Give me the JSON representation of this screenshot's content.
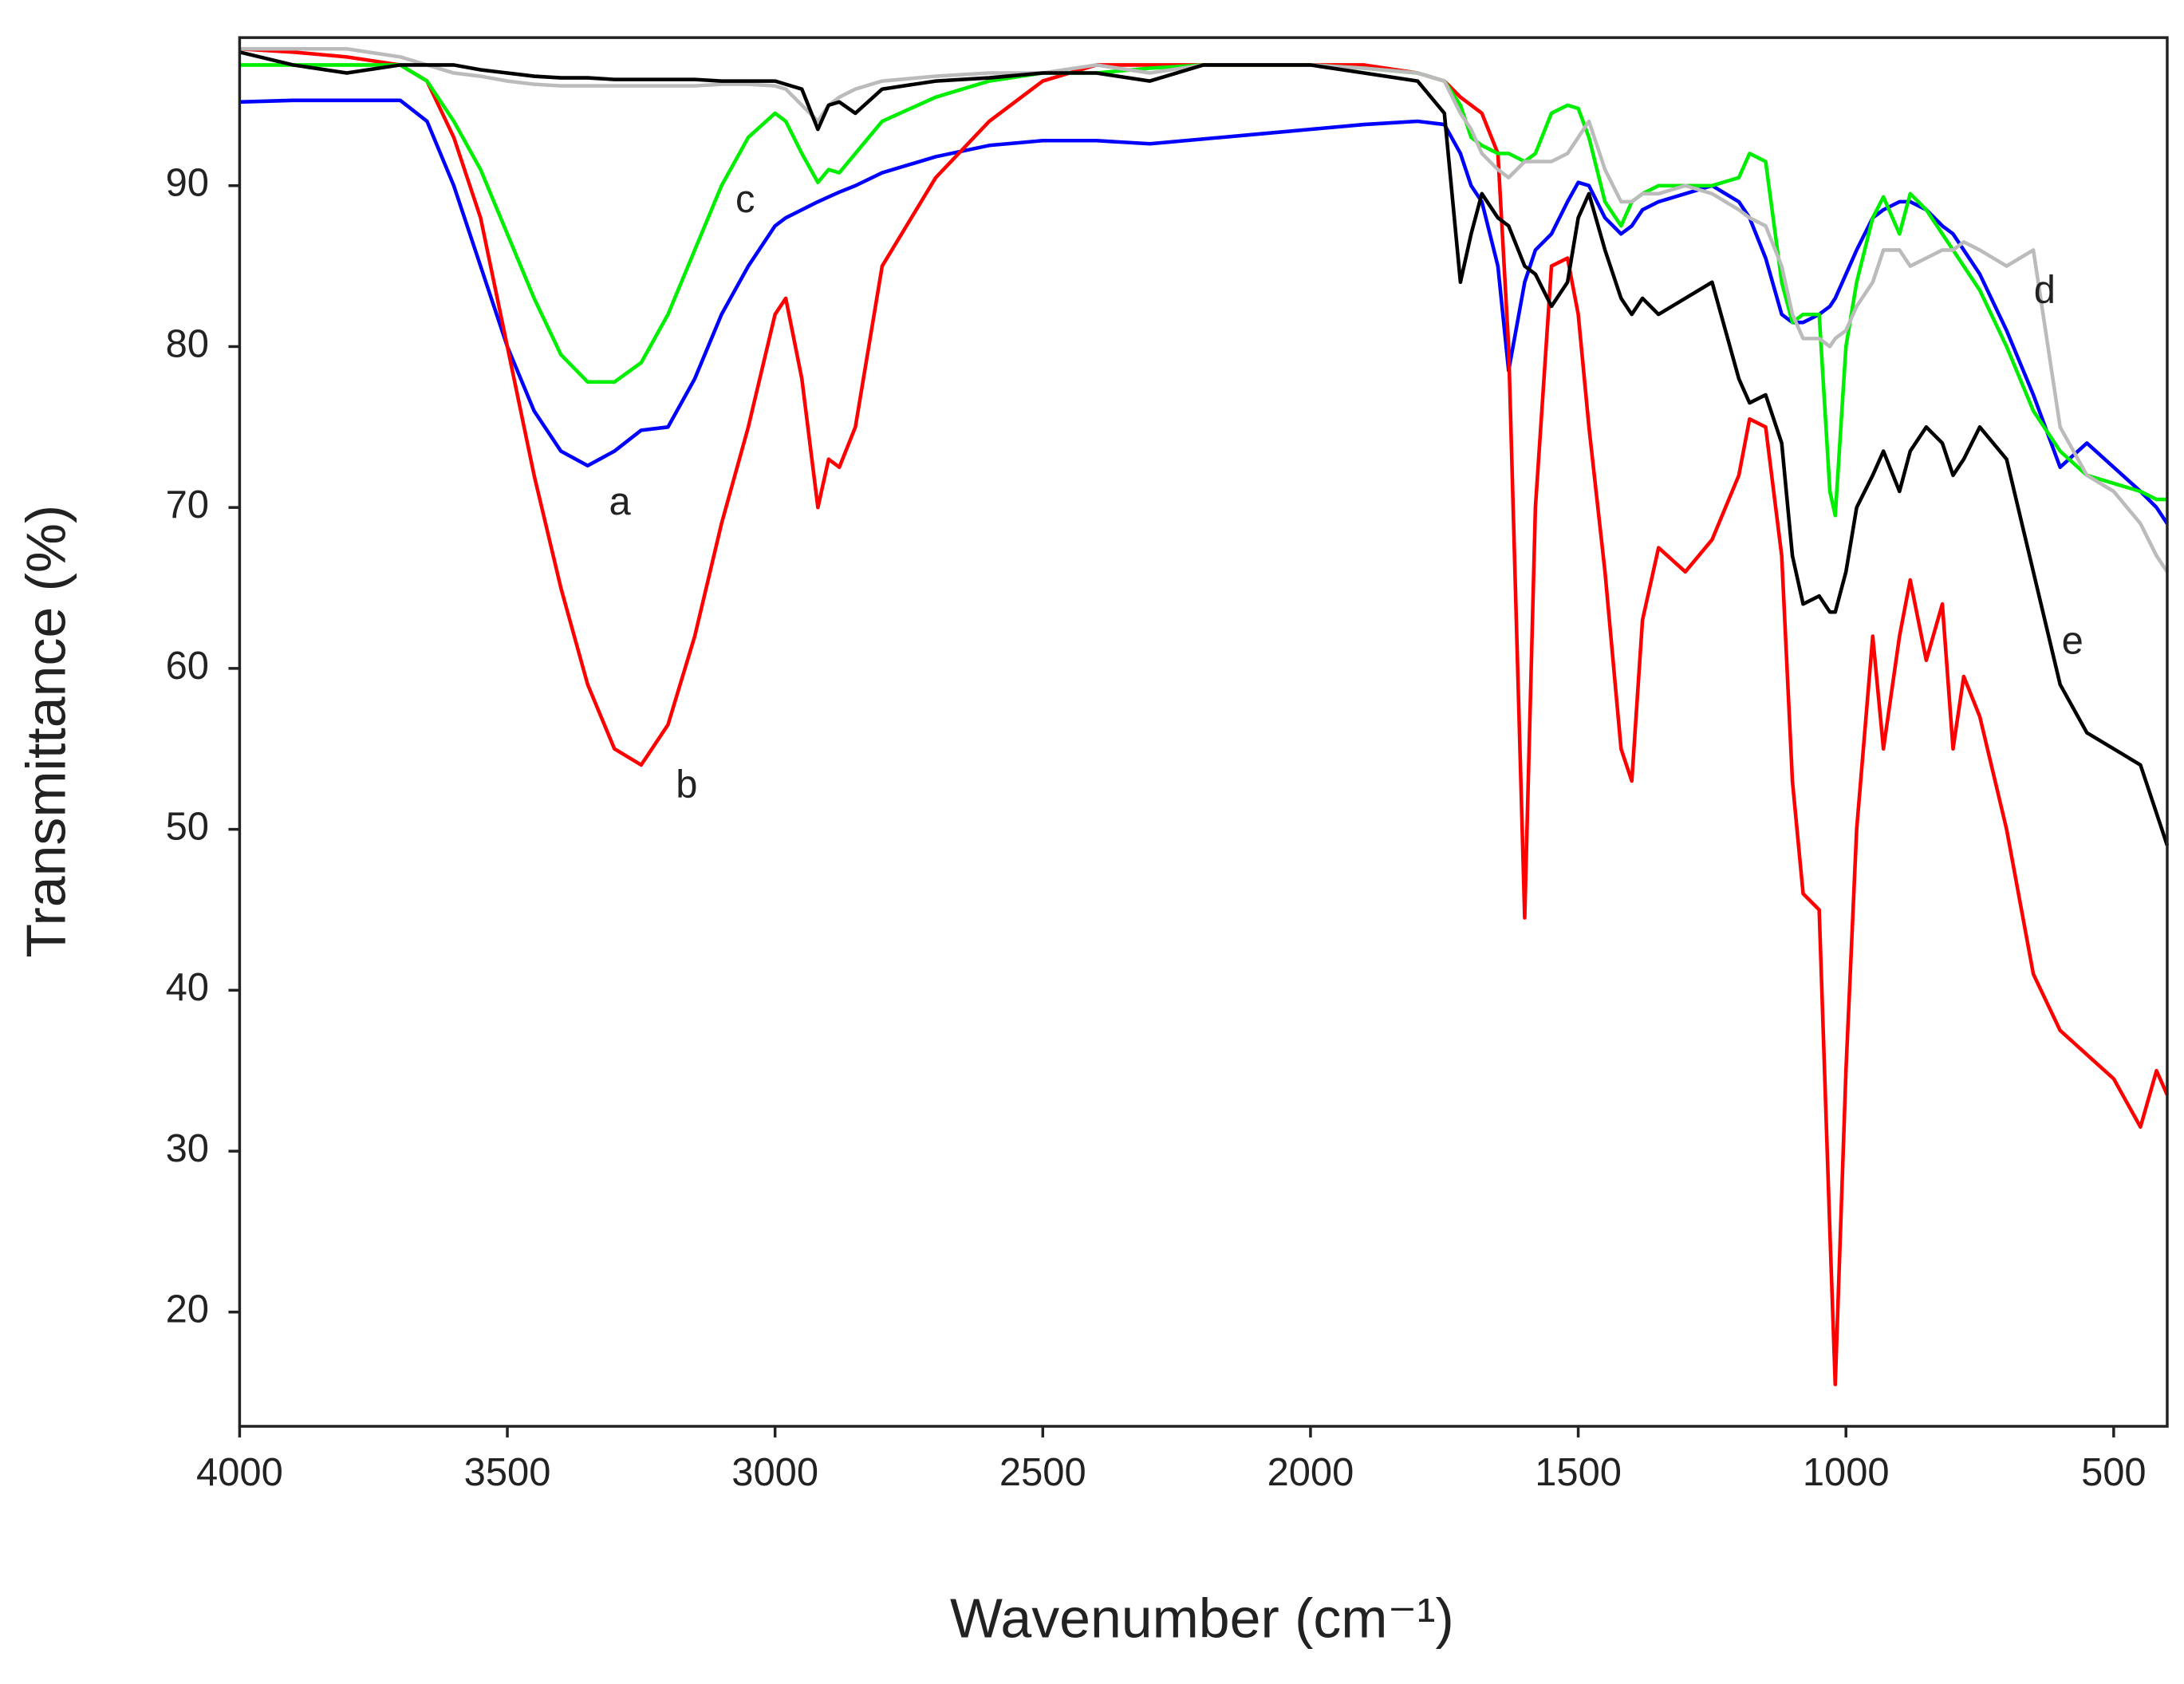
{
  "chart_data": {
    "type": "line",
    "xlabel": "Wavenumber (cm⁻¹)",
    "ylabel": "Transmittance (%)",
    "xlim": [
      4000,
      400
    ],
    "ylim": [
      12.9,
      99.2
    ],
    "xticks": [
      4000,
      3500,
      3000,
      2500,
      2000,
      1500,
      1000,
      500
    ],
    "yticks": [
      20,
      30,
      40,
      50,
      60,
      70,
      80,
      90
    ],
    "grid": false,
    "x": [
      4000,
      3900,
      3800,
      3700,
      3650,
      3600,
      3550,
      3500,
      3450,
      3400,
      3350,
      3300,
      3250,
      3200,
      3150,
      3100,
      3050,
      3000,
      2980,
      2950,
      2920,
      2900,
      2880,
      2850,
      2800,
      2700,
      2600,
      2500,
      2400,
      2300,
      2200,
      2100,
      2000,
      1900,
      1800,
      1750,
      1720,
      1700,
      1680,
      1650,
      1630,
      1600,
      1580,
      1550,
      1520,
      1500,
      1480,
      1450,
      1420,
      1400,
      1380,
      1350,
      1300,
      1250,
      1200,
      1180,
      1150,
      1120,
      1100,
      1080,
      1050,
      1030,
      1020,
      1000,
      980,
      950,
      930,
      900,
      880,
      850,
      820,
      800,
      780,
      750,
      700,
      650,
      600,
      550,
      500,
      450,
      420,
      400
    ],
    "series": [
      {
        "name": "a",
        "color": "#0000ff",
        "values": [
          95.2,
          95.3,
          95.3,
          95.3,
          94,
          90,
          85,
          80,
          76,
          73.5,
          72.6,
          73.5,
          74.8,
          75,
          78,
          82,
          85,
          87.5,
          88,
          88.5,
          89,
          89.3,
          89.6,
          90,
          90.8,
          91.8,
          92.5,
          92.8,
          92.8,
          92.6,
          92.9,
          93.2,
          93.5,
          93.8,
          94,
          93.8,
          92,
          90,
          89,
          85,
          78.5,
          84,
          86,
          87,
          89,
          90.2,
          90,
          88,
          87,
          87.5,
          88.5,
          89,
          89.5,
          90,
          89,
          88,
          85.5,
          82,
          81.5,
          81.5,
          82,
          82.5,
          83,
          84.5,
          86,
          88,
          88.5,
          89,
          89,
          88.5,
          87.5,
          87,
          86,
          84.5,
          81,
          77,
          72.5,
          74,
          72.5,
          71,
          70,
          69
        ]
      },
      {
        "name": "b",
        "color": "#ff0000",
        "values": [
          98.5,
          98.3,
          98,
          97.5,
          96.5,
          93,
          88,
          80,
          72,
          65,
          59,
          55,
          54,
          56.5,
          62,
          69,
          75,
          82,
          83,
          78,
          70,
          73,
          72.5,
          75,
          85,
          90.5,
          94,
          96.5,
          97.5,
          97.5,
          97.5,
          97.5,
          97.5,
          97.5,
          97,
          96.5,
          95.5,
          95,
          94.5,
          92,
          80,
          44.5,
          70,
          85,
          85.5,
          82,
          75,
          66,
          55,
          53,
          63,
          67.5,
          66,
          68,
          72,
          75.5,
          75,
          67,
          53,
          46,
          45,
          25,
          15.5,
          35,
          50,
          62,
          55,
          62,
          65.5,
          60.5,
          64,
          55,
          59.5,
          57,
          50,
          41,
          37.5,
          36,
          34.5,
          31.5,
          35,
          33.5
        ]
      },
      {
        "name": "c",
        "color": "#00ee00",
        "values": [
          97.5,
          97.5,
          97.5,
          97.5,
          96.5,
          94,
          91,
          87,
          83,
          79.5,
          77.8,
          77.8,
          79,
          82,
          86,
          90,
          93,
          94.5,
          94,
          92,
          90.2,
          91,
          90.8,
          92,
          94,
          95.5,
          96.5,
          97,
          97,
          97.3,
          97.5,
          97.5,
          97.5,
          97.3,
          97,
          96.5,
          95,
          93,
          92.5,
          92,
          92,
          91.5,
          92,
          94.5,
          95,
          94.8,
          93,
          89,
          87.5,
          89,
          89.5,
          90,
          90,
          90,
          90.5,
          92,
          91.5,
          84,
          81.5,
          82,
          82,
          71,
          69.5,
          80,
          84,
          88,
          89.3,
          87,
          89.5,
          88.5,
          87,
          86,
          85,
          83.5,
          80,
          76,
          73.5,
          72,
          71.5,
          71,
          70.5,
          70.5
        ]
      },
      {
        "name": "d",
        "color": "#bbbbbb",
        "values": [
          98.5,
          98.5,
          98.5,
          98,
          97.5,
          97,
          96.8,
          96.5,
          96.3,
          96.2,
          96.2,
          96.2,
          96.2,
          96.2,
          96.2,
          96.3,
          96.3,
          96.2,
          96,
          95,
          94,
          95,
          95.5,
          96,
          96.5,
          96.8,
          97,
          97,
          97.5,
          97,
          97.5,
          97.5,
          97.5,
          97.3,
          97,
          96.5,
          94.5,
          93.5,
          92,
          91,
          90.5,
          91.5,
          91.5,
          91.5,
          92,
          93,
          94,
          91,
          89,
          89,
          89.5,
          89.5,
          90,
          89.5,
          88.5,
          88,
          87.5,
          85,
          82,
          80.5,
          80.5,
          80,
          80.5,
          81,
          82.5,
          84,
          86,
          86,
          85,
          85.5,
          86,
          86,
          86.5,
          86,
          85,
          86,
          75,
          72,
          71,
          69,
          67,
          66
        ]
      },
      {
        "name": "e",
        "color": "#000000",
        "values": [
          98.3,
          97.5,
          97,
          97.5,
          97.5,
          97.5,
          97.2,
          97,
          96.8,
          96.7,
          96.7,
          96.6,
          96.6,
          96.6,
          96.6,
          96.5,
          96.5,
          96.5,
          96.3,
          96,
          93.5,
          95,
          95.2,
          94.5,
          96,
          96.5,
          96.7,
          97,
          97,
          96.5,
          97.5,
          97.5,
          97.5,
          97,
          96.5,
          94.5,
          84,
          87,
          89.5,
          88,
          87.5,
          85,
          84.5,
          82.5,
          84,
          88,
          89.5,
          86,
          83,
          82,
          83,
          82,
          83,
          84,
          78,
          76.5,
          77,
          74,
          67,
          64,
          64.5,
          63.5,
          63.5,
          66,
          70,
          72,
          73.5,
          71,
          73.5,
          75,
          74,
          72,
          73,
          75,
          73,
          66,
          59,
          56,
          55,
          54,
          51,
          49
        ]
      }
    ]
  }
}
